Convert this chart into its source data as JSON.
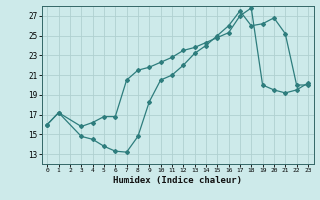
{
  "xlabel": "Humidex (Indice chaleur)",
  "bg_color": "#cdeaea",
  "line_color": "#2e7d7d",
  "grid_color": "#b0d0d0",
  "xlim": [
    -0.5,
    23.5
  ],
  "ylim": [
    12,
    28
  ],
  "yticks": [
    13,
    15,
    17,
    19,
    21,
    23,
    25,
    27
  ],
  "xticks": [
    0,
    1,
    2,
    3,
    4,
    5,
    6,
    7,
    8,
    9,
    10,
    11,
    12,
    13,
    14,
    15,
    16,
    17,
    18,
    19,
    20,
    21,
    22,
    23
  ],
  "line1_x": [
    0,
    1,
    3,
    4,
    5,
    6,
    7,
    8,
    9,
    10,
    11,
    12,
    13,
    14,
    15,
    16,
    17,
    18,
    19,
    20,
    21,
    22,
    23
  ],
  "line1_y": [
    16,
    17.2,
    15.8,
    16.2,
    16.8,
    16.8,
    20.5,
    21.5,
    21.8,
    22.3,
    22.8,
    23.5,
    23.8,
    24.3,
    24.8,
    25.3,
    27.0,
    27.8,
    20.0,
    19.5,
    19.2,
    19.5,
    20.2
  ],
  "line2_x": [
    0,
    1,
    3,
    4,
    5,
    6,
    7,
    8,
    9,
    10,
    11,
    12,
    13,
    14,
    15,
    16,
    17,
    18,
    19,
    20,
    21,
    22,
    23
  ],
  "line2_y": [
    16,
    17.2,
    14.8,
    14.5,
    13.8,
    13.3,
    13.2,
    14.8,
    18.3,
    20.5,
    21.0,
    22.0,
    23.2,
    24.0,
    25.0,
    26.0,
    27.5,
    26.0,
    26.2,
    26.8,
    25.2,
    20.0,
    20.0
  ]
}
